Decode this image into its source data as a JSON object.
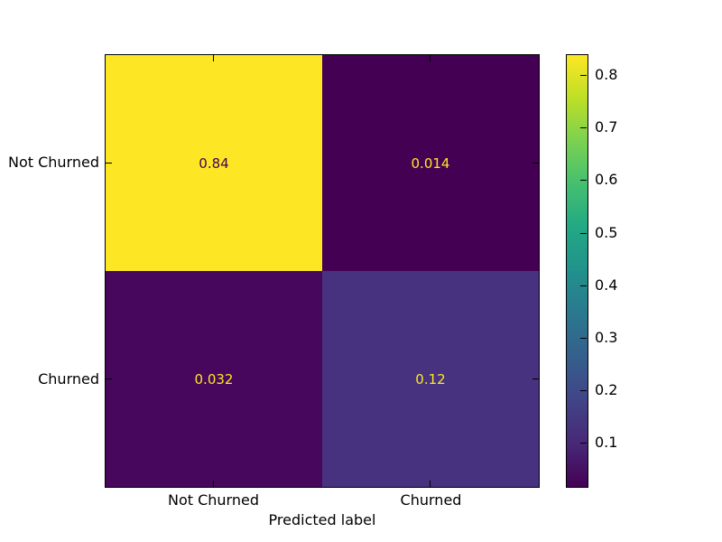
{
  "chart_data": {
    "type": "heatmap",
    "title": "",
    "xlabel": "Predicted label",
    "ylabel": "",
    "x_tick_labels": [
      "Not Churned",
      "Churned"
    ],
    "y_tick_labels": [
      "Not Churned",
      "Churned"
    ],
    "matrix_values": [
      [
        0.84,
        0.014
      ],
      [
        0.032,
        0.12
      ]
    ],
    "cells": [
      {
        "row": 0,
        "col": 0,
        "label": "0.84",
        "value": 0.84,
        "bg": "#fde725",
        "fg": "#440154"
      },
      {
        "row": 0,
        "col": 1,
        "label": "0.014",
        "value": 0.014,
        "bg": "#440154",
        "fg": "#fde725"
      },
      {
        "row": 1,
        "col": 0,
        "label": "0.032",
        "value": 0.032,
        "bg": "#46075c",
        "fg": "#fde725"
      },
      {
        "row": 1,
        "col": 1,
        "label": "0.12",
        "value": 0.12,
        "bg": "#46327e",
        "fg": "#fde725"
      }
    ],
    "colormap": "viridis",
    "vmin": 0.014,
    "vmax": 0.84,
    "grid": false,
    "legend_position": "none",
    "colorbar": {
      "position": "right",
      "tick_values": [
        0.8,
        0.7,
        0.6,
        0.5,
        0.4,
        0.3,
        0.2,
        0.1
      ],
      "tick_labels": [
        "0.8",
        "0.7",
        "0.6",
        "0.5",
        "0.4",
        "0.3",
        "0.2",
        "0.1"
      ],
      "gradient_stops_top_to_bottom": [
        "#fde725",
        "#bddf26",
        "#7ad151",
        "#44bf70",
        "#22a884",
        "#21918c",
        "#2a788e",
        "#355f8d",
        "#414487",
        "#482878",
        "#440154"
      ]
    },
    "colors": {
      "axes_edge": "#000000",
      "background": "#ffffff",
      "tick_color": "#000000",
      "high_cell": "#fde725",
      "low_cell": "#440154"
    }
  }
}
